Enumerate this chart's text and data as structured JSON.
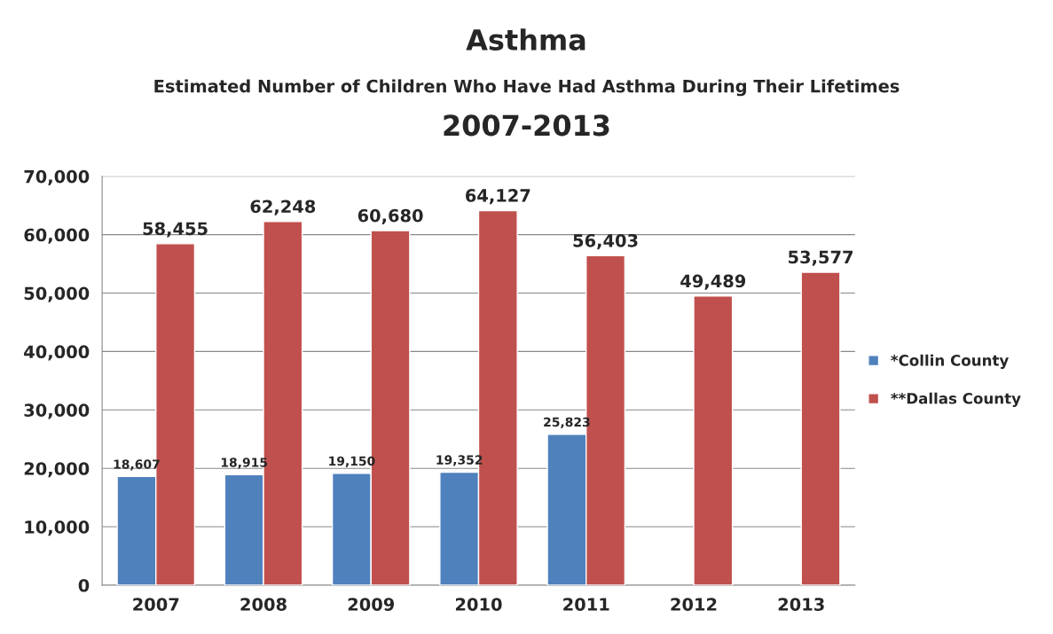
{
  "chart_data": {
    "type": "bar",
    "title": "Asthma",
    "subtitle": "Estimated Number of Children Who Have Had Asthma During Their Lifetimes\n2007-2013",
    "categories": [
      "2007",
      "2008",
      "2009",
      "2010",
      "2011",
      "2012",
      "2013"
    ],
    "series": [
      {
        "name": "*Collin County",
        "color": "#4f81bd",
        "values": [
          18607,
          18915,
          19150,
          19352,
          25823,
          null,
          null
        ],
        "value_labels": [
          "18,607",
          "18,915",
          "19,150",
          "19,352",
          "25,823",
          null,
          null
        ]
      },
      {
        "name": "**Dallas County",
        "color": "#c0504d",
        "values": [
          58455,
          62248,
          60680,
          64127,
          56403,
          49489,
          53577
        ],
        "value_labels": [
          "58,455",
          "62,248",
          "60,680",
          "64,127",
          "56,403",
          "49,489",
          "53,577"
        ]
      }
    ],
    "ylim": [
      0,
      70000
    ],
    "yticks": [
      {
        "value": 0,
        "label": "0"
      },
      {
        "value": 10000,
        "label": "10,000"
      },
      {
        "value": 20000,
        "label": "20,000"
      },
      {
        "value": 30000,
        "label": "30,000"
      },
      {
        "value": 40000,
        "label": "40,000"
      },
      {
        "value": 50000,
        "label": "50,000"
      },
      {
        "value": 60000,
        "label": "60,000"
      },
      {
        "value": 70000,
        "label": "70,000"
      }
    ],
    "grid": "y",
    "legend": "right"
  }
}
